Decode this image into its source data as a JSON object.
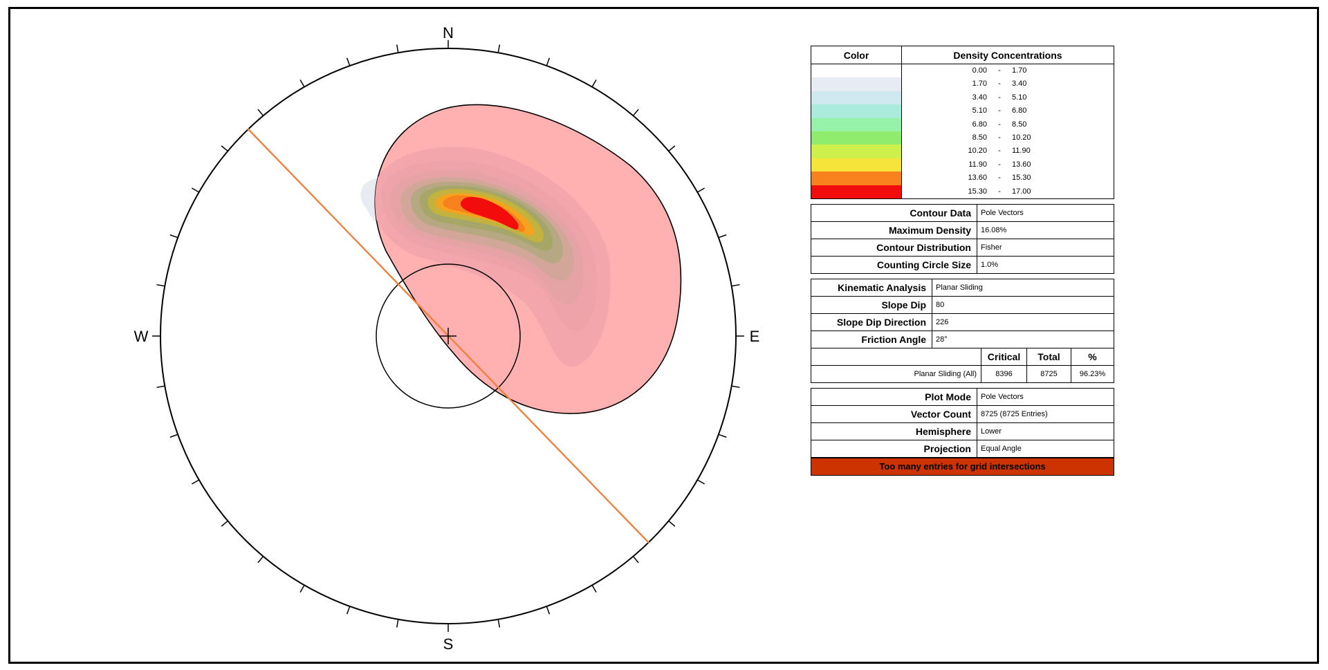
{
  "stereonet": {
    "compass": {
      "north": "N",
      "east": "E",
      "south": "S",
      "west": "W"
    },
    "slope_plane_color": "#f08040",
    "friction_cone_color": "#000000",
    "daylight_envelope_fill": "#ffb0b0"
  },
  "legend": {
    "density": {
      "color_header": "Color",
      "conc_header": "Density Concentrations",
      "ranges": [
        {
          "lo": "0.00",
          "hi": "1.70",
          "color": "#ffffff"
        },
        {
          "lo": "1.70",
          "hi": "3.40",
          "color": "#e6ecf1"
        },
        {
          "lo": "3.40",
          "hi": "5.10",
          "color": "#cde9ef"
        },
        {
          "lo": "5.10",
          "hi": "6.80",
          "color": "#a9ecdc"
        },
        {
          "lo": "6.80",
          "hi": "8.50",
          "color": "#96f2a8"
        },
        {
          "lo": "8.50",
          "hi": "10.20",
          "color": "#90ec6c"
        },
        {
          "lo": "10.20",
          "hi": "11.90",
          "color": "#cdf04a"
        },
        {
          "lo": "11.90",
          "hi": "13.60",
          "color": "#f6e43a"
        },
        {
          "lo": "13.60",
          "hi": "15.30",
          "color": "#f7811c"
        },
        {
          "lo": "15.30",
          "hi": "17.00",
          "color": "#f20c0c"
        }
      ],
      "dash": "-"
    },
    "contour": [
      {
        "label": "Contour Data",
        "value": "Pole Vectors"
      },
      {
        "label": "Maximum Density",
        "value": "16.08%"
      },
      {
        "label": "Contour Distribution",
        "value": "Fisher"
      },
      {
        "label": "Counting Circle Size",
        "value": "1.0%"
      }
    ],
    "kinematic": [
      {
        "label": "Kinematic Analysis",
        "value": "Planar Sliding"
      },
      {
        "label": "Slope Dip",
        "value": "80"
      },
      {
        "label": "Slope Dip Direction",
        "value": "226"
      },
      {
        "label": "Friction Angle",
        "value": "28°"
      }
    ],
    "critical": {
      "headers": [
        "Critical",
        "Total",
        "%"
      ],
      "row_label": "Planar Sliding (All)",
      "critical": "8396",
      "total": "8725",
      "percent": "96.23%"
    },
    "plot": [
      {
        "label": "Plot Mode",
        "value": "Pole Vectors"
      },
      {
        "label": "Vector Count",
        "value": "8725 (8725 Entries)"
      },
      {
        "label": "Hemisphere",
        "value": "Lower"
      },
      {
        "label": "Projection",
        "value": "Equal Angle"
      }
    ],
    "warning": "Too many entries for grid intersections"
  }
}
